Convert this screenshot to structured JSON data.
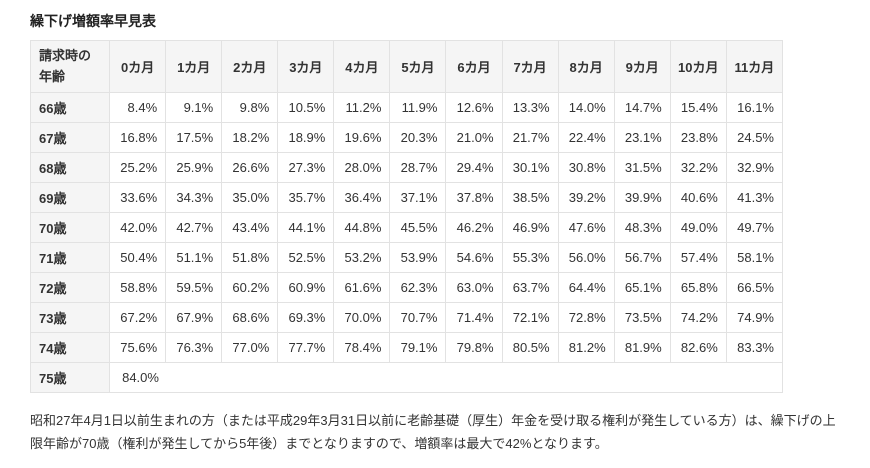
{
  "page": {
    "title": "繰下げ増額率早見表",
    "note": "昭和27年4月1日以前生まれの方（または平成29年3月31日以前に老齢基礎（厚生）年金を受け取る権利が発生している方）は、繰下げの上限年齢が70歳（権利が発生してから5年後）までとなりますので、増額率は最大で42%となります。"
  },
  "table": {
    "corner_header": "請求時の年齢",
    "month_headers": [
      "0カ月",
      "1カ月",
      "2カ月",
      "3カ月",
      "4カ月",
      "5カ月",
      "6カ月",
      "7カ月",
      "8カ月",
      "9カ月",
      "10カ月",
      "11カ月"
    ],
    "rows": [
      {
        "age": "66歳",
        "values": [
          "8.4%",
          "9.1%",
          "9.8%",
          "10.5%",
          "11.2%",
          "11.9%",
          "12.6%",
          "13.3%",
          "14.0%",
          "14.7%",
          "15.4%",
          "16.1%"
        ]
      },
      {
        "age": "67歳",
        "values": [
          "16.8%",
          "17.5%",
          "18.2%",
          "18.9%",
          "19.6%",
          "20.3%",
          "21.0%",
          "21.7%",
          "22.4%",
          "23.1%",
          "23.8%",
          "24.5%"
        ]
      },
      {
        "age": "68歳",
        "values": [
          "25.2%",
          "25.9%",
          "26.6%",
          "27.3%",
          "28.0%",
          "28.7%",
          "29.4%",
          "30.1%",
          "30.8%",
          "31.5%",
          "32.2%",
          "32.9%"
        ]
      },
      {
        "age": "69歳",
        "values": [
          "33.6%",
          "34.3%",
          "35.0%",
          "35.7%",
          "36.4%",
          "37.1%",
          "37.8%",
          "38.5%",
          "39.2%",
          "39.9%",
          "40.6%",
          "41.3%"
        ]
      },
      {
        "age": "70歳",
        "values": [
          "42.0%",
          "42.7%",
          "43.4%",
          "44.1%",
          "44.8%",
          "45.5%",
          "46.2%",
          "46.9%",
          "47.6%",
          "48.3%",
          "49.0%",
          "49.7%"
        ]
      },
      {
        "age": "71歳",
        "values": [
          "50.4%",
          "51.1%",
          "51.8%",
          "52.5%",
          "53.2%",
          "53.9%",
          "54.6%",
          "55.3%",
          "56.0%",
          "56.7%",
          "57.4%",
          "58.1%"
        ]
      },
      {
        "age": "72歳",
        "values": [
          "58.8%",
          "59.5%",
          "60.2%",
          "60.9%",
          "61.6%",
          "62.3%",
          "63.0%",
          "63.7%",
          "64.4%",
          "65.1%",
          "65.8%",
          "66.5%"
        ]
      },
      {
        "age": "73歳",
        "values": [
          "67.2%",
          "67.9%",
          "68.6%",
          "69.3%",
          "70.0%",
          "70.7%",
          "71.4%",
          "72.1%",
          "72.8%",
          "73.5%",
          "74.2%",
          "74.9%"
        ]
      },
      {
        "age": "74歳",
        "values": [
          "75.6%",
          "76.3%",
          "77.0%",
          "77.7%",
          "78.4%",
          "79.1%",
          "79.8%",
          "80.5%",
          "81.2%",
          "81.9%",
          "82.6%",
          "83.3%"
        ]
      },
      {
        "age": "75歳",
        "values": [
          "84.0%"
        ],
        "merged": true
      }
    ]
  },
  "colors": {
    "header_bg": "#f5f5f5",
    "border": "#e2e2e2",
    "text": "#333333"
  }
}
